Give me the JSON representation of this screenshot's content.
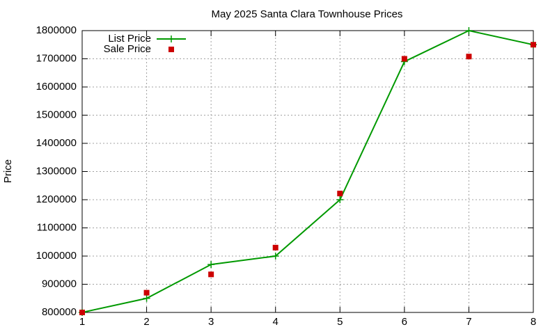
{
  "chart_data": {
    "type": "line",
    "title": "May 2025 Santa Clara Townhouse Prices",
    "y_label": "Price",
    "x": [
      1,
      2,
      3,
      4,
      5,
      6,
      7,
      8
    ],
    "series": [
      {
        "name": "List Price",
        "color": "#009900",
        "mode": "lines+markers",
        "marker": "plus",
        "values": [
          800000,
          850000,
          970000,
          1000000,
          1200000,
          1690000,
          1800000,
          1750000
        ]
      },
      {
        "name": "Sale Price",
        "color": "#cc0000",
        "mode": "markers",
        "marker": "square",
        "values": [
          800000,
          870000,
          935000,
          1030000,
          1222000,
          1700000,
          1708000,
          1750000
        ]
      }
    ],
    "xlim": [
      1,
      8
    ],
    "xticks": [
      1,
      2,
      3,
      4,
      5,
      6,
      7,
      8
    ],
    "ylim": [
      800000,
      1800000
    ],
    "yticks": [
      800000,
      900000,
      1000000,
      1100000,
      1200000,
      1300000,
      1400000,
      1500000,
      1600000,
      1700000,
      1800000
    ],
    "grid": true,
    "legend_position": "top-left"
  }
}
